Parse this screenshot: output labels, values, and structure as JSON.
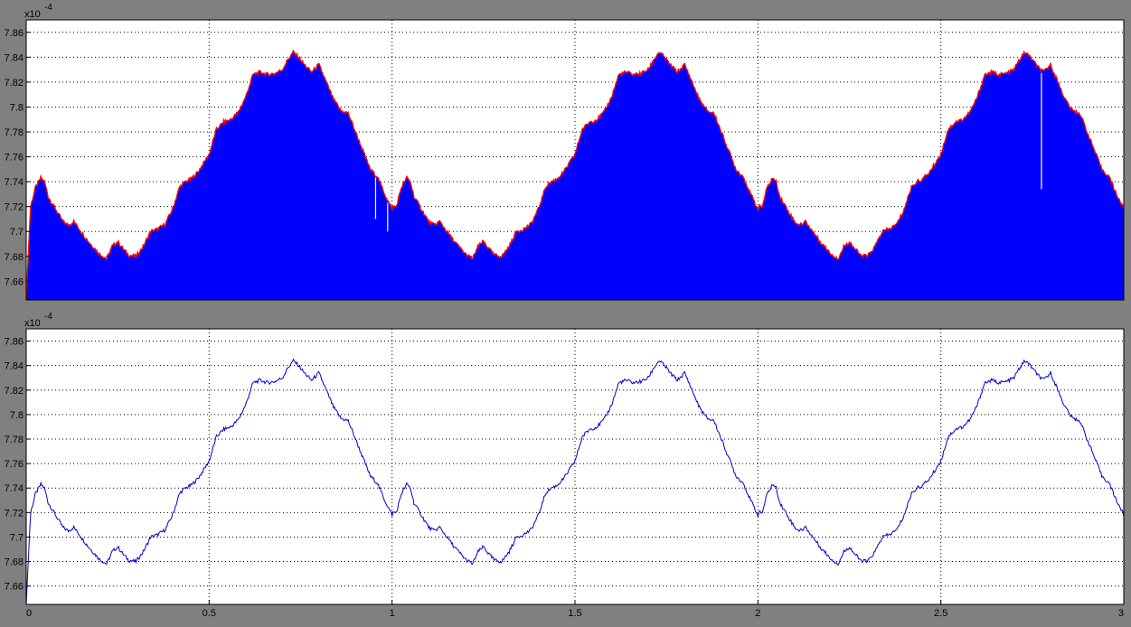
{
  "figure": {
    "background_color": "#808080",
    "axes_background": "#ffffff",
    "grid": true,
    "grid_color": "#000000"
  },
  "chart_data": [
    {
      "type": "area",
      "title": "",
      "xlabel": "",
      "ylabel": "",
      "xlim": [
        0,
        3
      ],
      "ylim": [
        7.645,
        7.87
      ],
      "y_exponent_label": "x10",
      "y_exponent_power": "-4",
      "x_ticks": [],
      "y_ticks": [
        "7.66",
        "7.68",
        "7.7",
        "7.72",
        "7.74",
        "7.76",
        "7.78",
        "7.8",
        "7.82",
        "7.84",
        "7.86"
      ],
      "fill_color": "#0000ff",
      "edge_color": "#ff0000",
      "period": 1,
      "x": [
        0.0,
        0.012,
        0.025,
        0.04,
        0.05,
        0.06,
        0.08,
        0.1,
        0.115,
        0.13,
        0.15,
        0.17,
        0.2,
        0.22,
        0.235,
        0.25,
        0.265,
        0.28,
        0.3,
        0.32,
        0.34,
        0.36,
        0.38,
        0.4,
        0.42,
        0.435,
        0.45,
        0.47,
        0.5,
        0.52,
        0.54,
        0.55,
        0.56,
        0.58,
        0.6,
        0.62,
        0.64,
        0.66,
        0.68,
        0.7,
        0.715,
        0.73,
        0.745,
        0.76,
        0.78,
        0.8,
        0.82,
        0.84,
        0.86,
        0.88,
        0.9,
        0.92,
        0.94,
        0.96,
        0.98,
        1.0
      ],
      "y": [
        7.645,
        7.72,
        7.735,
        7.743,
        7.74,
        7.728,
        7.718,
        7.708,
        7.705,
        7.708,
        7.7,
        7.692,
        7.682,
        7.678,
        7.688,
        7.692,
        7.686,
        7.681,
        7.68,
        7.688,
        7.7,
        7.702,
        7.706,
        7.718,
        7.736,
        7.74,
        7.742,
        7.748,
        7.762,
        7.782,
        7.788,
        7.789,
        7.79,
        7.796,
        7.808,
        7.826,
        7.828,
        7.826,
        7.827,
        7.83,
        7.838,
        7.844,
        7.84,
        7.834,
        7.828,
        7.834,
        7.82,
        7.806,
        7.797,
        7.795,
        7.78,
        7.765,
        7.75,
        7.744,
        7.73,
        7.718
      ],
      "gaps": [
        {
          "x": 0.955,
          "y_bottom": 7.71
        },
        {
          "x": 0.988,
          "y_bottom": 7.7
        },
        {
          "x": 2.775,
          "y_bottom": 7.734
        }
      ]
    },
    {
      "type": "line",
      "title": "",
      "xlabel": "",
      "ylabel": "",
      "xlim": [
        0,
        3
      ],
      "ylim": [
        7.645,
        7.87
      ],
      "y_exponent_label": "x10",
      "y_exponent_power": "-4",
      "x_ticks": [
        "0",
        "0.5",
        "1",
        "1.5",
        "2",
        "2.5",
        "3"
      ],
      "y_ticks": [
        "7.66",
        "7.68",
        "7.7",
        "7.72",
        "7.74",
        "7.76",
        "7.78",
        "7.8",
        "7.82",
        "7.84",
        "7.86"
      ],
      "line_color": "#0000cc",
      "period": 1,
      "x": [
        0.0,
        0.012,
        0.025,
        0.04,
        0.05,
        0.06,
        0.08,
        0.1,
        0.115,
        0.13,
        0.15,
        0.17,
        0.2,
        0.22,
        0.235,
        0.25,
        0.265,
        0.28,
        0.3,
        0.32,
        0.34,
        0.36,
        0.38,
        0.4,
        0.42,
        0.435,
        0.45,
        0.47,
        0.5,
        0.52,
        0.54,
        0.55,
        0.56,
        0.58,
        0.6,
        0.62,
        0.64,
        0.66,
        0.68,
        0.7,
        0.715,
        0.73,
        0.745,
        0.76,
        0.78,
        0.8,
        0.82,
        0.84,
        0.86,
        0.88,
        0.9,
        0.92,
        0.94,
        0.96,
        0.98,
        1.0
      ],
      "y": [
        7.645,
        7.72,
        7.735,
        7.743,
        7.74,
        7.728,
        7.718,
        7.708,
        7.705,
        7.708,
        7.7,
        7.692,
        7.682,
        7.678,
        7.688,
        7.692,
        7.686,
        7.681,
        7.68,
        7.688,
        7.7,
        7.702,
        7.706,
        7.718,
        7.736,
        7.74,
        7.742,
        7.748,
        7.762,
        7.782,
        7.788,
        7.789,
        7.79,
        7.796,
        7.808,
        7.826,
        7.828,
        7.826,
        7.827,
        7.83,
        7.838,
        7.844,
        7.84,
        7.834,
        7.828,
        7.834,
        7.82,
        7.806,
        7.797,
        7.795,
        7.78,
        7.765,
        7.75,
        7.744,
        7.73,
        7.718
      ]
    }
  ]
}
